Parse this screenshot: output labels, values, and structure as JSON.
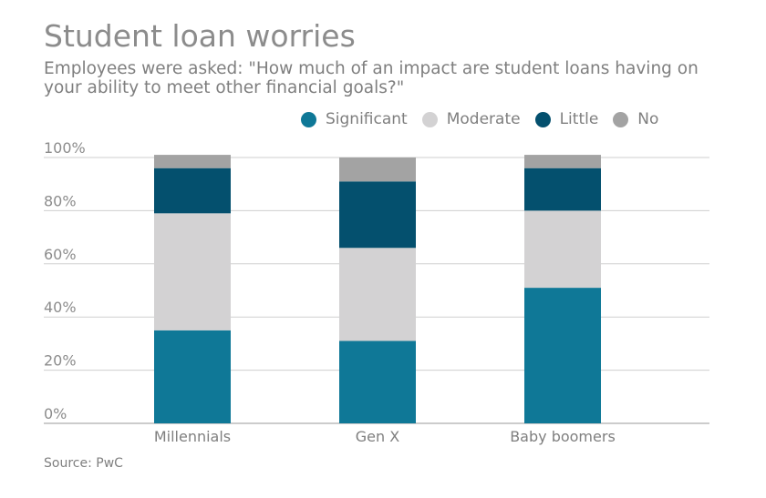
{
  "chart_data": {
    "type": "bar",
    "stacked": true,
    "title": "Student loan worries",
    "subtitle": "Employees were asked: \"How much of an impact are student loans having on your ability to meet other financial goals?\"",
    "categories": [
      "Millennials",
      "Gen X",
      "Baby boomers"
    ],
    "series": [
      {
        "name": "Significant",
        "color": "#0f7897",
        "values": [
          35,
          31,
          51
        ]
      },
      {
        "name": "Moderate",
        "color": "#d3d2d3",
        "values": [
          44,
          35,
          29
        ]
      },
      {
        "name": "Little",
        "color": "#04506e",
        "values": [
          17,
          25,
          16
        ]
      },
      {
        "name": "No",
        "color": "#a3a3a3",
        "values": [
          5,
          9,
          5
        ]
      }
    ],
    "yticks": [
      "0%",
      "20%",
      "40%",
      "60%",
      "80%",
      "100%"
    ],
    "ylim": [
      0,
      100
    ],
    "grid": true,
    "legend_position": "top-right",
    "source": "Source: PwC"
  }
}
